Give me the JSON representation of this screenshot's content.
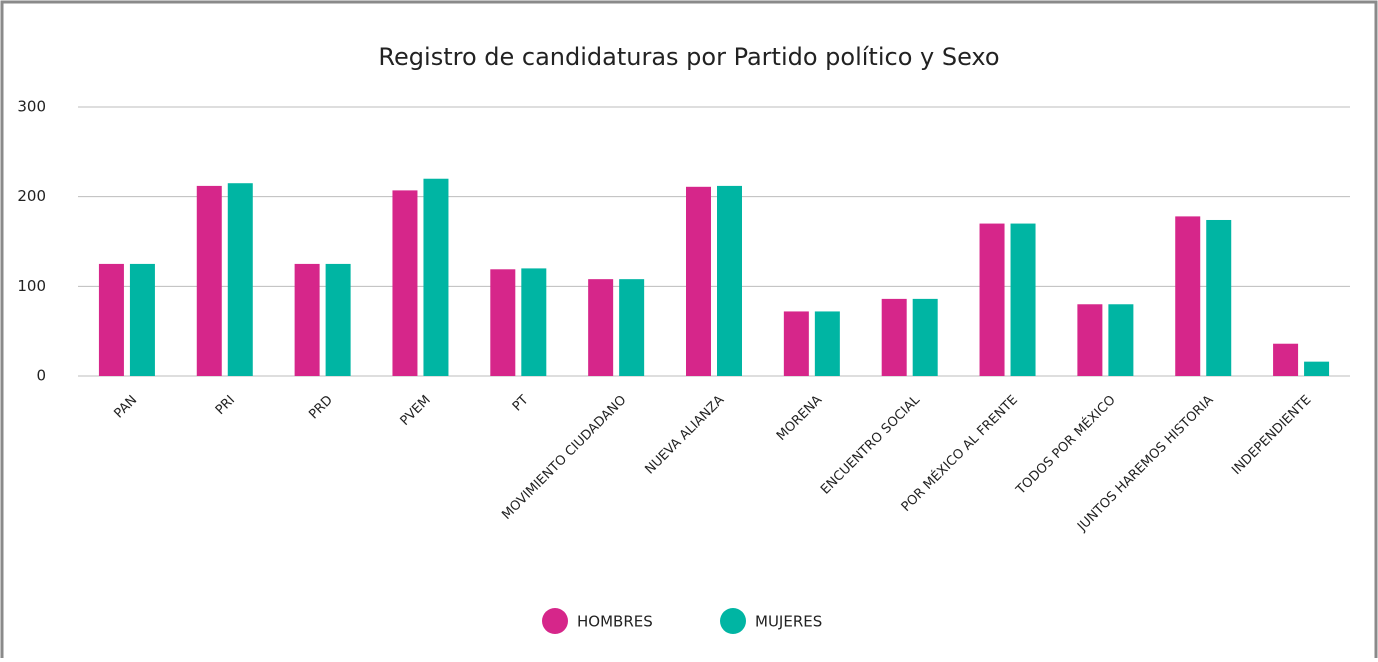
{
  "chart_data": {
    "type": "bar",
    "title": "Registro de candidaturas por Partido político y Sexo",
    "categories": [
      "PAN",
      "PRI",
      "PRD",
      "PVEM",
      "PT",
      "MOVIMIENTO CIUDADANO",
      "NUEVA ALIANZA",
      "MORENA",
      "ENCUENTRO SOCIAL",
      "POR MÉXICO AL FRENTE",
      "TODOS POR MÉXICO",
      "JUNTOS HAREMOS HISTORIA",
      "INDEPENDIENTE"
    ],
    "series": [
      {
        "name": "HOMBRES",
        "color": "#d6268a",
        "values": [
          125,
          212,
          125,
          207,
          119,
          108,
          211,
          72,
          86,
          170,
          80,
          178,
          36
        ]
      },
      {
        "name": "MUJERES",
        "color": "#00b5a3",
        "values": [
          125,
          215,
          125,
          220,
          120,
          108,
          212,
          72,
          86,
          170,
          80,
          174,
          16
        ]
      }
    ],
    "ylim": [
      0,
      300
    ],
    "yticks": [
      0,
      100,
      200,
      300
    ],
    "grid": true,
    "legend": "bottom"
  }
}
